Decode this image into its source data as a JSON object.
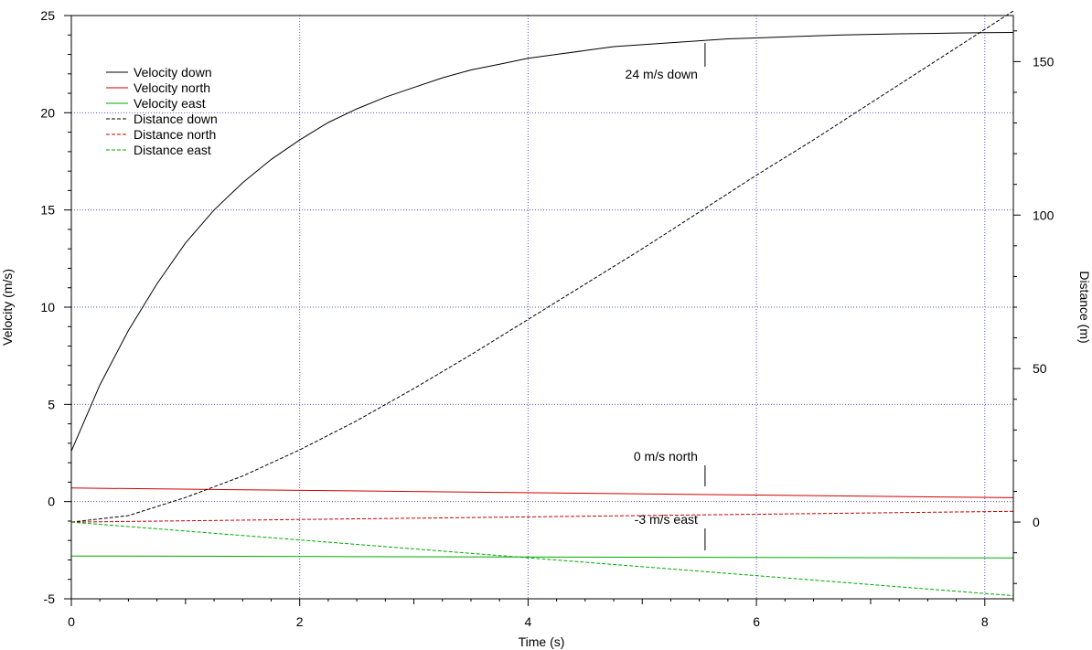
{
  "chart_data": {
    "type": "line",
    "xlabel": "Time (s)",
    "ylabel_left": "Velocity (m/s)",
    "ylabel_right": "Distance (m)",
    "xlim": [
      0,
      8.25
    ],
    "ylim_left": [
      -5,
      25
    ],
    "ylim_right": [
      -25,
      165
    ],
    "x_ticks": [
      0,
      2,
      4,
      6,
      8
    ],
    "y_left_ticks": [
      -5,
      0,
      5,
      10,
      15,
      20,
      25
    ],
    "y_right_ticks": [
      0,
      50,
      100,
      150
    ],
    "grid": true,
    "legend_position": "top-left",
    "series": [
      {
        "name": "Velocity down",
        "axis": "left",
        "style": "solid",
        "color": "#000000",
        "x": [
          0,
          0.25,
          0.5,
          0.75,
          1,
          1.25,
          1.5,
          1.75,
          2,
          2.25,
          2.5,
          2.75,
          3,
          3.25,
          3.5,
          3.75,
          4,
          4.25,
          4.5,
          4.75,
          5,
          5.25,
          5.5,
          5.75,
          6,
          6.25,
          6.5,
          6.75,
          7,
          7.25,
          7.5,
          7.75,
          8,
          8.25
        ],
        "y": [
          2.6,
          6.0,
          8.8,
          11.2,
          13.3,
          15.0,
          16.4,
          17.6,
          18.6,
          19.5,
          20.2,
          20.8,
          21.3,
          21.8,
          22.2,
          22.5,
          22.8,
          23.0,
          23.2,
          23.4,
          23.5,
          23.6,
          23.7,
          23.8,
          23.85,
          23.9,
          23.95,
          24.0,
          24.03,
          24.06,
          24.08,
          24.1,
          24.12,
          24.13
        ]
      },
      {
        "name": "Velocity north",
        "axis": "left",
        "style": "solid",
        "color": "#cc0000",
        "x": [
          0,
          8.25
        ],
        "y": [
          0.7,
          0.2
        ]
      },
      {
        "name": "Velocity east",
        "axis": "left",
        "style": "solid",
        "color": "#00aa00",
        "x": [
          0,
          8.25
        ],
        "y": [
          -2.8,
          -2.9
        ]
      },
      {
        "name": "Distance down",
        "axis": "right",
        "style": "dashed",
        "color": "#000000",
        "x": [
          0,
          0.5,
          1,
          1.5,
          2,
          2.5,
          3,
          3.5,
          4,
          4.5,
          5,
          5.5,
          6,
          6.5,
          7,
          7.5,
          8,
          8.25
        ],
        "y": [
          0,
          2.1,
          8.0,
          15.0,
          23.5,
          33.0,
          43.5,
          54.5,
          66.0,
          77.5,
          89.0,
          101.0,
          113.0,
          124.5,
          136.5,
          148.5,
          160.5,
          166.5
        ]
      },
      {
        "name": "Distance north",
        "axis": "right",
        "style": "dashed",
        "color": "#cc0000",
        "x": [
          0,
          8.25
        ],
        "y": [
          0,
          3.5
        ]
      },
      {
        "name": "Distance east",
        "axis": "right",
        "style": "dashed",
        "color": "#00aa00",
        "x": [
          0,
          8.25
        ],
        "y": [
          0,
          -24
        ]
      }
    ],
    "annotations": [
      {
        "text": "24 m/s down",
        "x": 5.55
      },
      {
        "text": "0 m/s north",
        "x": 5.55
      },
      {
        "text": "-3 m/s east",
        "x": 5.55
      }
    ]
  }
}
